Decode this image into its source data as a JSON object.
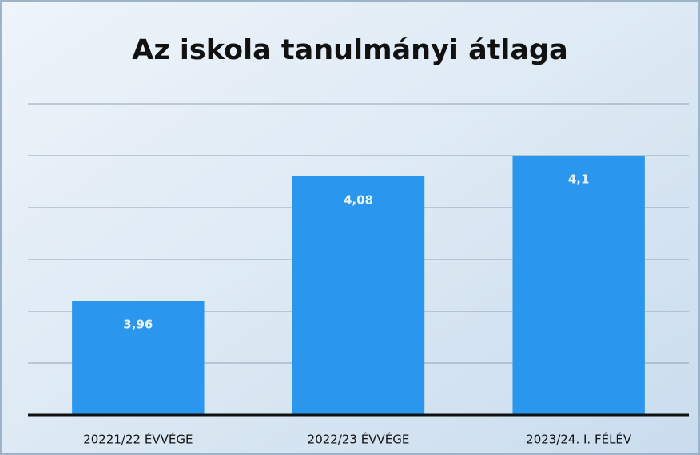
{
  "chart_data": {
    "type": "bar",
    "title": "Az iskola tanulmányi átlaga",
    "categories": [
      "20221/22 ÉVVÉGE",
      "2022/23 ÉVVÉGE",
      "2023/24. I. FÉLÉV"
    ],
    "values": [
      3.96,
      4.08,
      4.1
    ],
    "value_labels": [
      "3,96",
      "4,08",
      "4,1"
    ],
    "color": "#2b96ee",
    "ylim": [
      3.85,
      4.15
    ],
    "yticks": [
      3.9,
      3.95,
      4.0,
      4.05,
      4.1,
      4.15
    ],
    "grid": true
  }
}
